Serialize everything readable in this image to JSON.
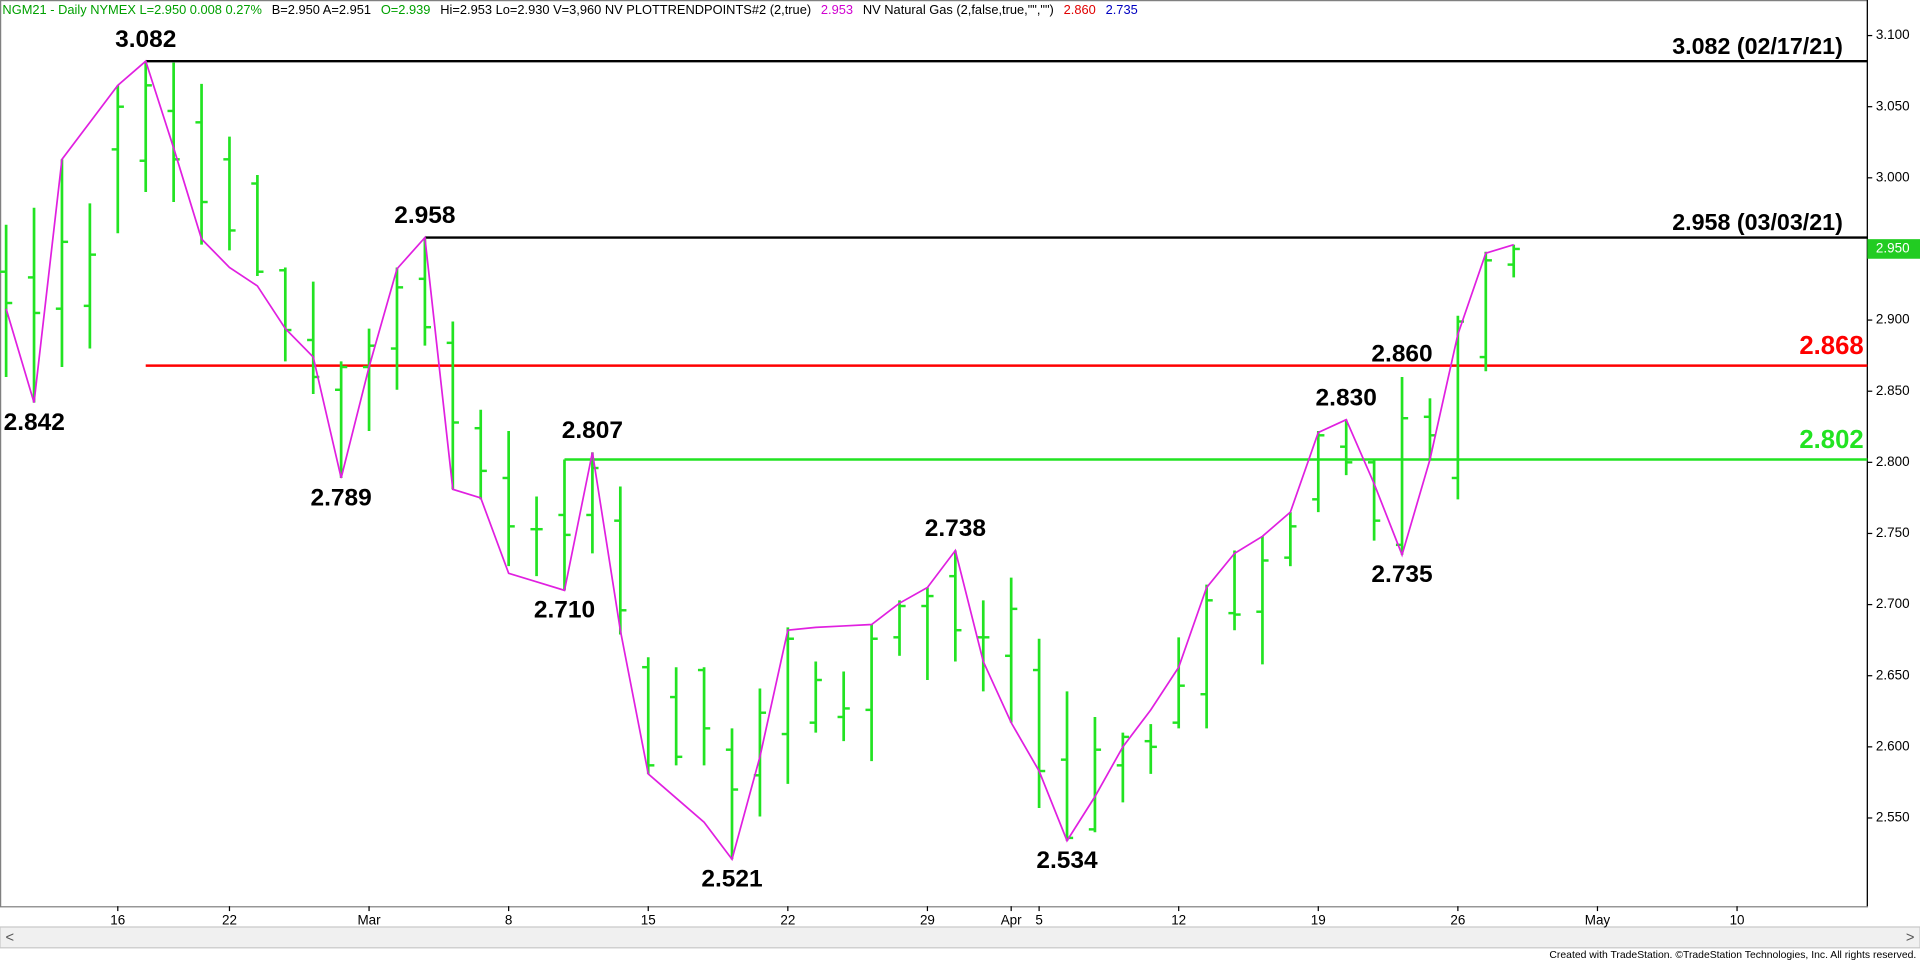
{
  "chart_data": {
    "type": "ohlc",
    "header": [
      {
        "text": "NGM21 - Daily  NYMEX  L=2.950  0.008  0.27%",
        "color": "#00a000"
      },
      {
        "text": "B=2.950  A=2.951",
        "color": "#000000"
      },
      {
        "text": "O=2.939",
        "color": "#00a000"
      },
      {
        "text": "Hi=2.953  Lo=2.930  V=3,960  NV  PLOTTRENDPOINTS#2 (2,true)",
        "color": "#000000"
      },
      {
        "text": "2.953",
        "color": "#d000d0"
      },
      {
        "text": "NV Natural Gas (2,false,true,\"\",\"\")",
        "color": "#000000"
      },
      {
        "text": "2.860",
        "color": "#e00000"
      },
      {
        "text": "2.735",
        "color": "#0000c0"
      }
    ],
    "footer": "Created with TradeStation. ©TradeStation Technologies, Inc. All rights reserved.",
    "categories": [
      null,
      null,
      null,
      null,
      "16",
      null,
      null,
      null,
      "22",
      null,
      null,
      null,
      null,
      "Mar",
      null,
      null,
      null,
      null,
      "8",
      null,
      null,
      null,
      null,
      "15",
      null,
      null,
      null,
      null,
      "22",
      null,
      null,
      null,
      null,
      "29",
      null,
      null,
      "Apr",
      "5",
      null,
      null,
      null,
      null,
      "12",
      null,
      null,
      null,
      null,
      "19",
      null,
      null,
      null,
      null,
      "26",
      null,
      null,
      null,
      null,
      "May",
      null,
      null,
      null,
      null,
      "10",
      null,
      null,
      null,
      null,
      null
    ],
    "bar_color": "#22e322",
    "open": [
      2.934,
      2.93,
      2.908,
      2.91,
      3.02,
      3.012,
      3.047,
      3.039,
      3.013,
      2.996,
      2.935,
      2.886,
      2.851,
      2.867,
      2.88,
      2.929,
      2.884,
      2.824,
      2.789,
      2.753,
      2.763,
      2.763,
      2.759,
      2.656,
      2.635,
      2.654,
      2.598,
      2.58,
      2.609,
      2.617,
      2.621,
      2.626,
      2.677,
      2.699,
      2.72,
      2.677,
      2.664,
      2.654,
      2.591,
      2.542,
      2.587,
      2.604,
      2.617,
      2.637,
      2.694,
      2.695,
      2.733,
      2.774,
      2.811,
      2.8,
      2.742,
      2.832,
      2.789,
      2.874,
      2.939,
      null,
      null,
      null,
      null,
      null,
      null,
      null,
      null,
      null,
      null,
      null,
      null,
      null
    ],
    "high": [
      2.967,
      2.979,
      3.013,
      2.982,
      3.065,
      3.082,
      3.081,
      3.066,
      3.029,
      3.002,
      2.937,
      2.927,
      2.871,
      2.894,
      2.937,
      2.958,
      2.899,
      2.837,
      2.822,
      2.776,
      2.802,
      2.807,
      2.783,
      2.663,
      2.656,
      2.656,
      2.613,
      2.641,
      2.684,
      2.66,
      2.653,
      2.686,
      2.703,
      2.712,
      2.738,
      2.703,
      2.719,
      2.676,
      2.639,
      2.621,
      2.61,
      2.616,
      2.677,
      2.714,
      2.738,
      2.748,
      2.765,
      2.822,
      2.83,
      2.802,
      2.86,
      2.845,
      2.903,
      2.948,
      2.953,
      null,
      null,
      null,
      null,
      null,
      null,
      null,
      null,
      null,
      null,
      null,
      null,
      null
    ],
    "high_value_labels": [
      null,
      null,
      null,
      null,
      null,
      null,
      null,
      null,
      null,
      null,
      null,
      null,
      null,
      null,
      null,
      null,
      null,
      null,
      null,
      null,
      null,
      null,
      null,
      null,
      null,
      null,
      null,
      null,
      null,
      null,
      null,
      null,
      null,
      null,
      null,
      null,
      null,
      null,
      null,
      null,
      null,
      null,
      null,
      null,
      null,
      null,
      null,
      null,
      null,
      null,
      "2.860",
      null,
      null,
      null,
      null,
      null,
      null,
      null,
      null,
      null,
      null,
      null,
      null,
      null,
      null,
      null,
      null,
      null
    ],
    "low": [
      2.86,
      2.842,
      2.867,
      2.88,
      2.961,
      2.99,
      2.983,
      2.953,
      2.949,
      2.931,
      2.871,
      2.848,
      2.789,
      2.822,
      2.851,
      2.882,
      2.781,
      2.774,
      2.727,
      2.72,
      2.71,
      2.736,
      2.679,
      2.581,
      2.587,
      2.587,
      2.521,
      2.551,
      2.574,
      2.61,
      2.604,
      2.59,
      2.664,
      2.647,
      2.66,
      2.639,
      2.617,
      2.557,
      2.534,
      2.54,
      2.561,
      2.581,
      2.613,
      2.613,
      2.682,
      2.658,
      2.727,
      2.765,
      2.791,
      2.745,
      2.735,
      2.802,
      2.774,
      2.864,
      2.93,
      null,
      null,
      null,
      null,
      null,
      null,
      null,
      null,
      null,
      null,
      null,
      null,
      null
    ],
    "close": [
      2.912,
      2.905,
      2.955,
      2.946,
      3.05,
      3.065,
      3.013,
      2.983,
      2.963,
      2.934,
      2.893,
      2.86,
      2.867,
      2.882,
      2.923,
      2.895,
      2.828,
      2.794,
      2.755,
      2.753,
      2.749,
      2.796,
      2.696,
      2.587,
      2.593,
      2.613,
      2.57,
      2.624,
      2.676,
      2.647,
      2.627,
      2.676,
      2.699,
      2.706,
      2.682,
      2.677,
      2.697,
      2.583,
      2.536,
      2.598,
      2.607,
      2.6,
      2.643,
      2.703,
      2.693,
      2.731,
      2.755,
      2.819,
      2.8,
      2.759,
      2.831,
      2.819,
      2.899,
      2.942,
      2.95,
      null,
      null,
      null,
      null,
      null,
      null,
      null,
      null,
      null,
      null,
      null,
      null,
      null
    ],
    "last_price_label": "2.950",
    "last_price_color": "#22cc22",
    "zigzag": {
      "color": "#e020e0",
      "values": [
        2.908,
        2.842,
        3.013,
        3.039,
        3.065,
        3.082,
        3.021,
        2.957,
        2.937,
        2.924,
        2.894,
        2.874,
        2.789,
        2.867,
        2.936,
        2.958,
        2.781,
        2.775,
        2.722,
        2.716,
        2.71,
        2.807,
        2.682,
        2.581,
        2.564,
        2.547,
        2.521,
        2.593,
        2.682,
        2.684,
        2.685,
        2.686,
        2.701,
        2.712,
        2.738,
        2.66,
        2.617,
        2.583,
        2.534,
        2.565,
        2.6,
        2.626,
        2.656,
        2.712,
        2.736,
        2.748,
        2.765,
        2.821,
        2.83,
        2.785,
        2.735,
        2.802,
        2.89,
        2.947,
        2.953,
        null,
        null,
        null,
        null,
        null,
        null,
        null,
        null,
        null,
        null,
        null,
        null,
        null
      ],
      "value_labels": [
        null,
        "2.842",
        null,
        null,
        null,
        "3.082",
        null,
        null,
        null,
        null,
        null,
        null,
        "2.789",
        null,
        null,
        "2.958",
        null,
        null,
        null,
        null,
        "2.710",
        "2.807",
        null,
        null,
        null,
        null,
        "2.521",
        null,
        null,
        null,
        null,
        null,
        null,
        null,
        "2.738",
        null,
        null,
        null,
        "2.534",
        null,
        null,
        null,
        null,
        null,
        null,
        null,
        null,
        null,
        "2.830",
        null,
        "2.735",
        null,
        null,
        null,
        null,
        null,
        null,
        null,
        null,
        null,
        null,
        null,
        null,
        null,
        null,
        null,
        null,
        null
      ]
    },
    "hlines": [
      {
        "value": 3.082,
        "label": "3.082 (02/17/21)",
        "color": "#000000"
      },
      {
        "value": 2.958,
        "label": "2.958 (03/03/21)",
        "color": "#000000"
      },
      {
        "value": 2.868,
        "label": "2.868",
        "color": "#ff0000"
      },
      {
        "value": 2.802,
        "label": "2.802",
        "color": "#22e322"
      }
    ],
    "ylim": [
      2.488,
      3.125
    ],
    "yticks": [
      {
        "value": 2.55,
        "label": "2.550"
      },
      {
        "value": 2.6,
        "label": "2.600"
      },
      {
        "value": 2.65,
        "label": "2.650"
      },
      {
        "value": 2.7,
        "label": "2.700"
      },
      {
        "value": 2.75,
        "label": "2.750"
      },
      {
        "value": 2.8,
        "label": "2.800"
      },
      {
        "value": 2.85,
        "label": "2.850"
      },
      {
        "value": 2.9,
        "label": "2.900"
      },
      {
        "value": 2.95,
        "label": "2.950"
      },
      {
        "value": 3.0,
        "label": "3.000"
      },
      {
        "value": 3.05,
        "label": "3.050"
      },
      {
        "value": 3.1,
        "label": "3.100"
      }
    ]
  }
}
